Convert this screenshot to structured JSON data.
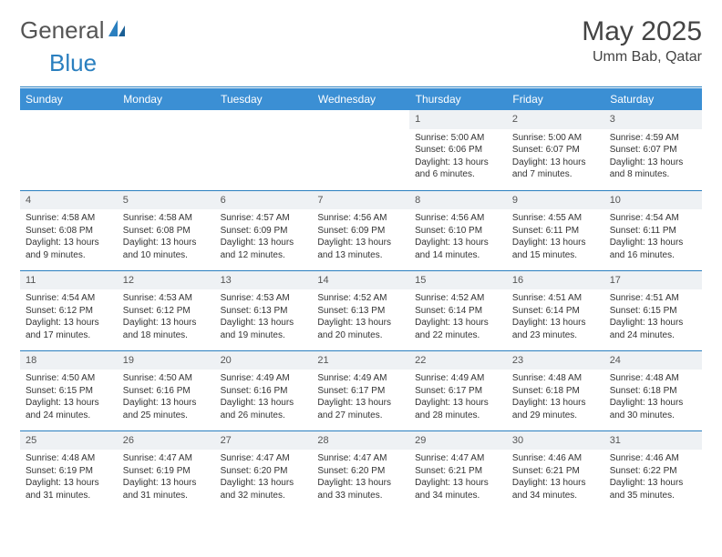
{
  "logo": {
    "text1": "General",
    "text2": "Blue"
  },
  "title": {
    "monthYear": "May 2025",
    "location": "Umm Bab, Qatar"
  },
  "colors": {
    "header_bg": "#3b8fd4",
    "header_text": "#ffffff",
    "border": "#2a7fbf",
    "daynum_bg": "#eef1f4",
    "logo_gray": "#555555",
    "logo_blue": "#2a7fbf"
  },
  "daysOfWeek": [
    "Sunday",
    "Monday",
    "Tuesday",
    "Wednesday",
    "Thursday",
    "Friday",
    "Saturday"
  ],
  "weeks": [
    [
      {
        "blank": true
      },
      {
        "blank": true
      },
      {
        "blank": true
      },
      {
        "blank": true
      },
      {
        "n": "1",
        "sunrise": "5:00 AM",
        "sunset": "6:06 PM",
        "daylight": "13 hours and 6 minutes."
      },
      {
        "n": "2",
        "sunrise": "5:00 AM",
        "sunset": "6:07 PM",
        "daylight": "13 hours and 7 minutes."
      },
      {
        "n": "3",
        "sunrise": "4:59 AM",
        "sunset": "6:07 PM",
        "daylight": "13 hours and 8 minutes."
      }
    ],
    [
      {
        "n": "4",
        "sunrise": "4:58 AM",
        "sunset": "6:08 PM",
        "daylight": "13 hours and 9 minutes."
      },
      {
        "n": "5",
        "sunrise": "4:58 AM",
        "sunset": "6:08 PM",
        "daylight": "13 hours and 10 minutes."
      },
      {
        "n": "6",
        "sunrise": "4:57 AM",
        "sunset": "6:09 PM",
        "daylight": "13 hours and 12 minutes."
      },
      {
        "n": "7",
        "sunrise": "4:56 AM",
        "sunset": "6:09 PM",
        "daylight": "13 hours and 13 minutes."
      },
      {
        "n": "8",
        "sunrise": "4:56 AM",
        "sunset": "6:10 PM",
        "daylight": "13 hours and 14 minutes."
      },
      {
        "n": "9",
        "sunrise": "4:55 AM",
        "sunset": "6:11 PM",
        "daylight": "13 hours and 15 minutes."
      },
      {
        "n": "10",
        "sunrise": "4:54 AM",
        "sunset": "6:11 PM",
        "daylight": "13 hours and 16 minutes."
      }
    ],
    [
      {
        "n": "11",
        "sunrise": "4:54 AM",
        "sunset": "6:12 PM",
        "daylight": "13 hours and 17 minutes."
      },
      {
        "n": "12",
        "sunrise": "4:53 AM",
        "sunset": "6:12 PM",
        "daylight": "13 hours and 18 minutes."
      },
      {
        "n": "13",
        "sunrise": "4:53 AM",
        "sunset": "6:13 PM",
        "daylight": "13 hours and 19 minutes."
      },
      {
        "n": "14",
        "sunrise": "4:52 AM",
        "sunset": "6:13 PM",
        "daylight": "13 hours and 20 minutes."
      },
      {
        "n": "15",
        "sunrise": "4:52 AM",
        "sunset": "6:14 PM",
        "daylight": "13 hours and 22 minutes."
      },
      {
        "n": "16",
        "sunrise": "4:51 AM",
        "sunset": "6:14 PM",
        "daylight": "13 hours and 23 minutes."
      },
      {
        "n": "17",
        "sunrise": "4:51 AM",
        "sunset": "6:15 PM",
        "daylight": "13 hours and 24 minutes."
      }
    ],
    [
      {
        "n": "18",
        "sunrise": "4:50 AM",
        "sunset": "6:15 PM",
        "daylight": "13 hours and 24 minutes."
      },
      {
        "n": "19",
        "sunrise": "4:50 AM",
        "sunset": "6:16 PM",
        "daylight": "13 hours and 25 minutes."
      },
      {
        "n": "20",
        "sunrise": "4:49 AM",
        "sunset": "6:16 PM",
        "daylight": "13 hours and 26 minutes."
      },
      {
        "n": "21",
        "sunrise": "4:49 AM",
        "sunset": "6:17 PM",
        "daylight": "13 hours and 27 minutes."
      },
      {
        "n": "22",
        "sunrise": "4:49 AM",
        "sunset": "6:17 PM",
        "daylight": "13 hours and 28 minutes."
      },
      {
        "n": "23",
        "sunrise": "4:48 AM",
        "sunset": "6:18 PM",
        "daylight": "13 hours and 29 minutes."
      },
      {
        "n": "24",
        "sunrise": "4:48 AM",
        "sunset": "6:18 PM",
        "daylight": "13 hours and 30 minutes."
      }
    ],
    [
      {
        "n": "25",
        "sunrise": "4:48 AM",
        "sunset": "6:19 PM",
        "daylight": "13 hours and 31 minutes."
      },
      {
        "n": "26",
        "sunrise": "4:47 AM",
        "sunset": "6:19 PM",
        "daylight": "13 hours and 31 minutes."
      },
      {
        "n": "27",
        "sunrise": "4:47 AM",
        "sunset": "6:20 PM",
        "daylight": "13 hours and 32 minutes."
      },
      {
        "n": "28",
        "sunrise": "4:47 AM",
        "sunset": "6:20 PM",
        "daylight": "13 hours and 33 minutes."
      },
      {
        "n": "29",
        "sunrise": "4:47 AM",
        "sunset": "6:21 PM",
        "daylight": "13 hours and 34 minutes."
      },
      {
        "n": "30",
        "sunrise": "4:46 AM",
        "sunset": "6:21 PM",
        "daylight": "13 hours and 34 minutes."
      },
      {
        "n": "31",
        "sunrise": "4:46 AM",
        "sunset": "6:22 PM",
        "daylight": "13 hours and 35 minutes."
      }
    ]
  ],
  "labels": {
    "sunrise": "Sunrise:",
    "sunset": "Sunset:",
    "daylight": "Daylight:"
  }
}
